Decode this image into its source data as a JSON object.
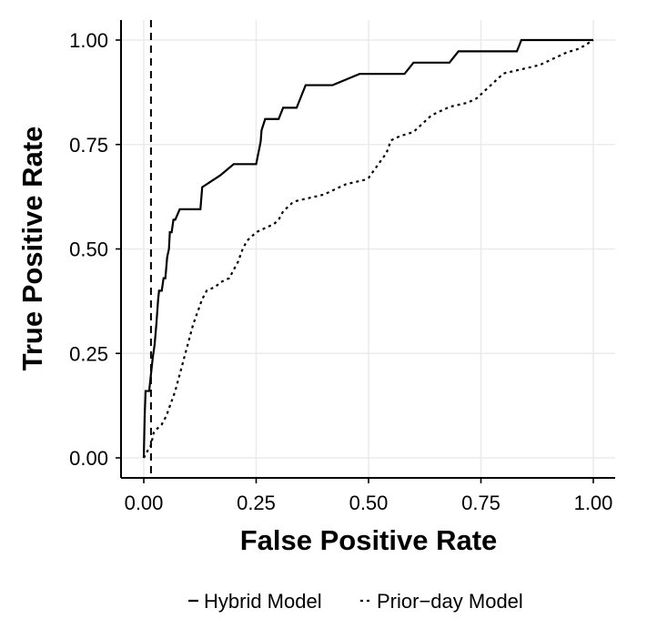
{
  "chart_data": {
    "type": "line",
    "title": "",
    "xlabel": "False Positive Rate",
    "ylabel": "True Positive Rate",
    "xlim": [
      0,
      1
    ],
    "ylim": [
      0,
      1
    ],
    "x_ticks": [
      0,
      0.25,
      0.5,
      0.75,
      1
    ],
    "x_tick_labels": [
      "0.00",
      "0.25",
      "0.50",
      "0.75",
      "1.00"
    ],
    "y_ticks": [
      0,
      0.25,
      0.5,
      0.75,
      1
    ],
    "y_tick_labels": [
      "0.00",
      "0.25",
      "0.50",
      "0.75",
      "1.00"
    ],
    "grid": true,
    "legend_position": "bottom",
    "reference_line": {
      "orientation": "vertical",
      "x": 0.016,
      "style": "dashed"
    },
    "series": [
      {
        "name": "Hybrid Model",
        "style": "solid",
        "color": "#000000",
        "x": [
          0,
          0.002,
          0.004,
          0.006,
          0.008,
          0.012,
          0.016,
          0.02,
          0.024,
          0.028,
          0.032,
          0.034,
          0.038,
          0.04,
          0.044,
          0.048,
          0.052,
          0.056,
          0.058,
          0.062,
          0.066,
          0.07,
          0.08,
          0.1,
          0.126,
          0.13,
          0.17,
          0.2,
          0.25,
          0.26,
          0.262,
          0.27,
          0.3,
          0.31,
          0.34,
          0.35,
          0.36,
          0.42,
          0.48,
          0.49,
          0.55,
          0.58,
          0.6,
          0.66,
          0.68,
          0.7,
          0.76,
          0.83,
          0.84,
          1.0
        ],
        "y": [
          0,
          0.1,
          0.16,
          0.16,
          0.16,
          0.16,
          0.2,
          0.24,
          0.27,
          0.32,
          0.38,
          0.4,
          0.4,
          0.4,
          0.43,
          0.43,
          0.48,
          0.5,
          0.54,
          0.54,
          0.57,
          0.57,
          0.595,
          0.595,
          0.595,
          0.648,
          0.676,
          0.703,
          0.703,
          0.757,
          0.784,
          0.811,
          0.811,
          0.838,
          0.838,
          0.865,
          0.892,
          0.892,
          0.919,
          0.919,
          0.919,
          0.919,
          0.946,
          0.946,
          0.946,
          0.973,
          0.973,
          0.973,
          1.0,
          1.0
        ]
      },
      {
        "name": "Prior−day Model",
        "style": "dotted",
        "color": "#000000",
        "x": [
          0,
          0.01,
          0.016,
          0.02,
          0.022,
          0.03,
          0.04,
          0.05,
          0.06,
          0.07,
          0.08,
          0.09,
          0.1,
          0.11,
          0.12,
          0.13,
          0.14,
          0.15,
          0.16,
          0.17,
          0.19,
          0.2,
          0.21,
          0.22,
          0.23,
          0.24,
          0.25,
          0.26,
          0.27,
          0.29,
          0.3,
          0.31,
          0.32,
          0.33,
          0.34,
          0.36,
          0.4,
          0.42,
          0.44,
          0.45,
          0.47,
          0.49,
          0.5,
          0.52,
          0.54,
          0.55,
          0.57,
          0.6,
          0.62,
          0.64,
          0.66,
          0.68,
          0.72,
          0.74,
          0.75,
          0.76,
          0.78,
          0.8,
          0.84,
          0.88,
          0.9,
          0.92,
          0.94,
          0.97,
          1.0
        ],
        "y": [
          0,
          0.02,
          0.03,
          0.05,
          0.06,
          0.07,
          0.08,
          0.1,
          0.13,
          0.16,
          0.2,
          0.24,
          0.28,
          0.32,
          0.35,
          0.38,
          0.4,
          0.405,
          0.41,
          0.42,
          0.43,
          0.45,
          0.47,
          0.5,
          0.52,
          0.53,
          0.54,
          0.545,
          0.55,
          0.56,
          0.57,
          0.59,
          0.6,
          0.61,
          0.615,
          0.62,
          0.63,
          0.64,
          0.65,
          0.655,
          0.66,
          0.665,
          0.67,
          0.7,
          0.73,
          0.76,
          0.77,
          0.78,
          0.8,
          0.82,
          0.83,
          0.84,
          0.85,
          0.86,
          0.87,
          0.88,
          0.9,
          0.92,
          0.93,
          0.94,
          0.95,
          0.96,
          0.97,
          0.98,
          1.0
        ]
      }
    ]
  }
}
